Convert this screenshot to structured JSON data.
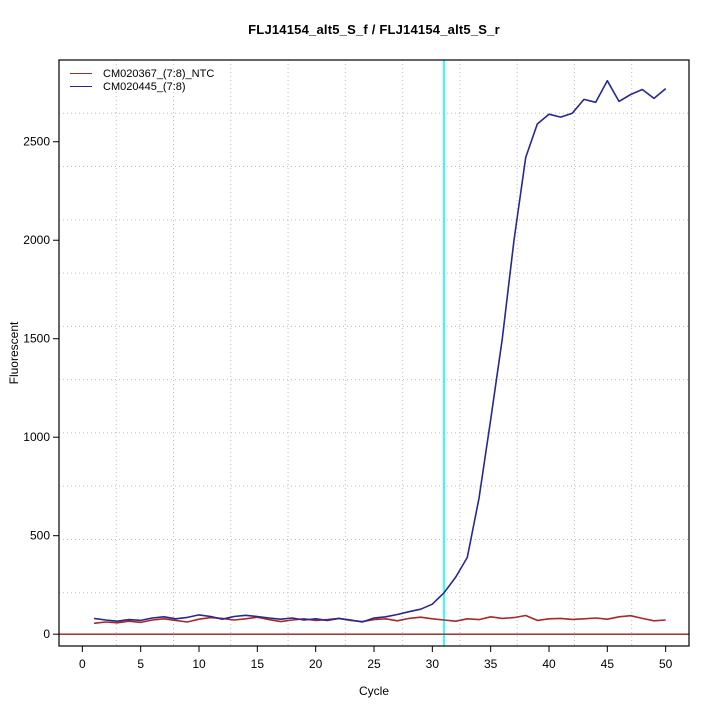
{
  "chart_data": {
    "type": "line",
    "title": "FLJ14154_alt5_S_f / FLJ14154_alt5_S_r",
    "xlabel": "Cycle",
    "ylabel": "Fluorescent",
    "xlim": [
      -2,
      52
    ],
    "ylim": [
      -60,
      2915
    ],
    "x_ticks": [
      0,
      5,
      10,
      15,
      20,
      25,
      30,
      35,
      40,
      45,
      50
    ],
    "y_ticks": [
      0,
      500,
      1000,
      1500,
      2000,
      2500
    ],
    "grid": {
      "divisions": 11,
      "color": "#bdbdbd",
      "style": "dotted",
      "on": true
    },
    "threshold_line": {
      "y": 0,
      "color": "#8b2222"
    },
    "ct_marker_line": {
      "x": 31,
      "color": "#00ffff"
    },
    "legend_position": "top-left",
    "x": [
      1,
      2,
      3,
      4,
      5,
      6,
      7,
      8,
      9,
      10,
      11,
      12,
      13,
      14,
      15,
      16,
      17,
      18,
      19,
      20,
      21,
      22,
      23,
      24,
      25,
      26,
      27,
      28,
      29,
      30,
      31,
      32,
      33,
      34,
      35,
      36,
      37,
      38,
      39,
      40,
      41,
      42,
      43,
      44,
      45,
      46,
      47,
      48,
      49,
      50
    ],
    "series": [
      {
        "name": "CM020367_(7:8)_NTC",
        "color": "#a52a2a",
        "values": [
          55,
          62,
          58,
          66,
          60,
          72,
          78,
          70,
          62,
          76,
          84,
          80,
          72,
          78,
          86,
          74,
          64,
          72,
          78,
          70,
          74,
          80,
          70,
          64,
          74,
          78,
          68,
          80,
          86,
          78,
          72,
          66,
          78,
          74,
          88,
          80,
          84,
          95,
          70,
          78,
          80,
          75,
          78,
          82,
          76,
          88,
          94,
          80,
          68,
          72
        ]
      },
      {
        "name": "CM020445_(7:8)",
        "color": "#28288f",
        "values": [
          80,
          72,
          66,
          74,
          70,
          82,
          88,
          78,
          85,
          98,
          90,
          76,
          90,
          96,
          90,
          82,
          76,
          82,
          72,
          78,
          70,
          80,
          72,
          62,
          82,
          88,
          100,
          114,
          127,
          152,
          210,
          290,
          390,
          690,
          1090,
          1500,
          2000,
          2420,
          2590,
          2640,
          2625,
          2645,
          2715,
          2700,
          2810,
          2705,
          2740,
          2765,
          2720,
          2770
        ]
      }
    ]
  }
}
